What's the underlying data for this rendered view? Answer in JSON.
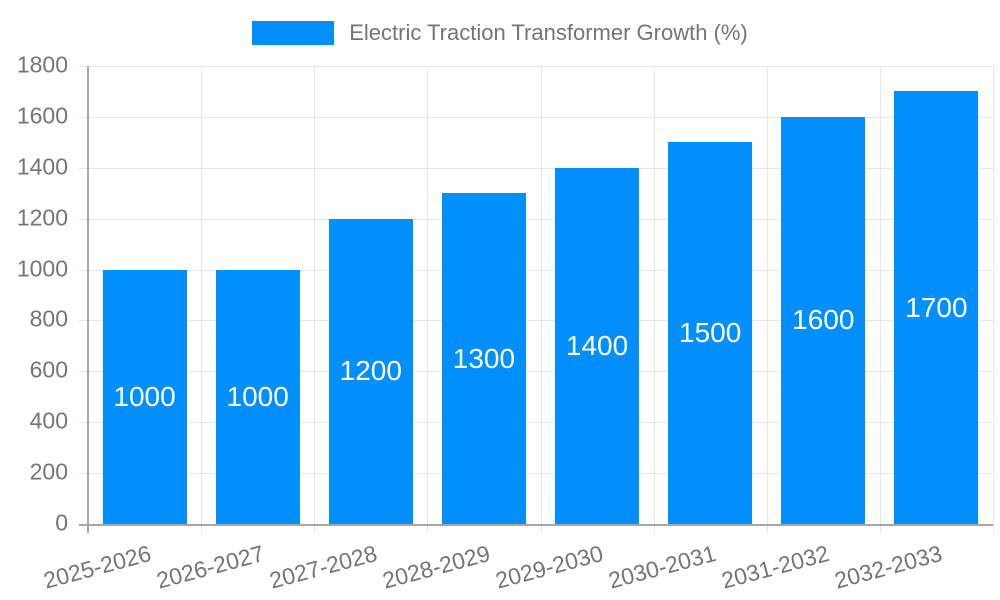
{
  "legend": {
    "label": "Electric Traction Transformer Growth (%)"
  },
  "chart_data": {
    "type": "bar",
    "title": "Electric Traction Transformer Growth (%)",
    "series": [
      {
        "name": "Electric Traction Transformer Growth (%)",
        "values": [
          1000,
          1000,
          1200,
          1300,
          1400,
          1500,
          1600,
          1700
        ]
      }
    ],
    "categories": [
      "2025-2026",
      "2026-2027",
      "2027-2028",
      "2028-2029",
      "2029-2030",
      "2030-2031",
      "2031-2032",
      "2032-2033"
    ],
    "values": [
      1000,
      1000,
      1200,
      1300,
      1400,
      1500,
      1600,
      1700
    ],
    "data_labels": [
      "1000",
      "1000",
      "1200",
      "1300",
      "1400",
      "1500",
      "1600",
      "1700"
    ],
    "yticks": [
      0,
      200,
      400,
      600,
      800,
      1000,
      1200,
      1400,
      1600,
      1800
    ],
    "ylim": [
      0,
      1800
    ],
    "ytick_step": 200,
    "xlabel": "",
    "ylabel": "",
    "grid": true,
    "legend_position": "top",
    "xlabel_rotation_deg": -15
  },
  "colors": {
    "bar": "#008FFB",
    "grid": "#e7e7e7",
    "axis": "#a6a6a6",
    "axis_text": "#757575",
    "data_label": "#ffffff",
    "background": "#ffffff"
  }
}
